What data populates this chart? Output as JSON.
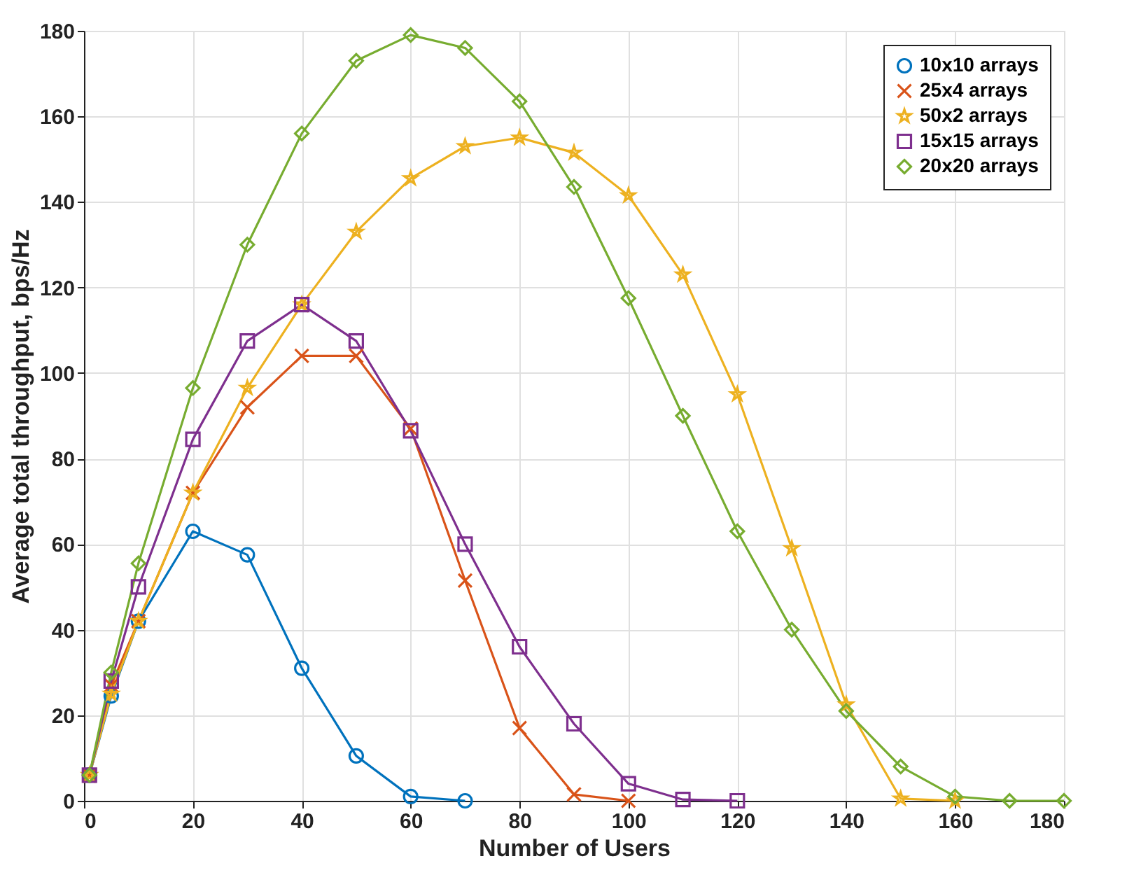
{
  "chart_data": {
    "type": "line",
    "xlabel": "Number of Users",
    "ylabel": "Average total throughput, bps/Hz",
    "xlim": [
      0,
      180
    ],
    "xticks": [
      0,
      20,
      40,
      60,
      80,
      100,
      120,
      140,
      160,
      180
    ],
    "ylim": [
      0,
      180
    ],
    "yticks": [
      0,
      20,
      40,
      60,
      80,
      100,
      120,
      140,
      160,
      180
    ],
    "grid": true,
    "legend": "top right",
    "line_style": "solid",
    "series": [
      {
        "name": "10x10 arrays",
        "color": "#0072bd",
        "marker": "circle",
        "x": [
          1,
          5,
          10,
          20,
          30,
          40,
          50,
          60,
          70
        ],
        "values": [
          6,
          24.5,
          42,
          63,
          57.5,
          31,
          10.5,
          1,
          0
        ]
      },
      {
        "name": "25x4 arrays",
        "color": "#d95319",
        "marker": "cross",
        "x": [
          1,
          5,
          10,
          20,
          30,
          40,
          50,
          60,
          70,
          80,
          90,
          100
        ],
        "values": [
          6,
          27,
          42,
          72,
          92,
          104,
          104,
          87,
          51.5,
          17,
          1.5,
          0
        ]
      },
      {
        "name": "50x2 arrays",
        "color": "#edb120",
        "marker": "star",
        "x": [
          1,
          5,
          10,
          20,
          30,
          40,
          50,
          60,
          70,
          80,
          90,
          100,
          110,
          120,
          130,
          140,
          150,
          160
        ],
        "values": [
          6,
          25,
          42,
          72,
          96.5,
          116,
          133,
          145.5,
          153,
          155,
          151.5,
          141.5,
          123,
          95,
          59,
          22.5,
          0.5,
          0
        ]
      },
      {
        "name": "15x15 arrays",
        "color": "#7e2f8e",
        "marker": "square",
        "x": [
          1,
          5,
          10,
          20,
          30,
          40,
          50,
          60,
          70,
          80,
          90,
          100,
          110,
          120
        ],
        "values": [
          6,
          28,
          50,
          84.5,
          107.5,
          116,
          107.5,
          86.5,
          60,
          36,
          18,
          4,
          0.3,
          0
        ]
      },
      {
        "name": "20x20 arrays",
        "color": "#77ac30",
        "marker": "diamond",
        "x": [
          1,
          5,
          10,
          20,
          30,
          40,
          50,
          60,
          70,
          80,
          90,
          100,
          110,
          120,
          130,
          140,
          150,
          160,
          170,
          180
        ],
        "values": [
          6,
          30,
          55.5,
          96.5,
          130,
          156,
          173,
          179,
          176,
          163.5,
          143.5,
          117.5,
          90,
          63,
          40,
          21,
          8,
          1,
          0,
          0
        ]
      }
    ]
  }
}
